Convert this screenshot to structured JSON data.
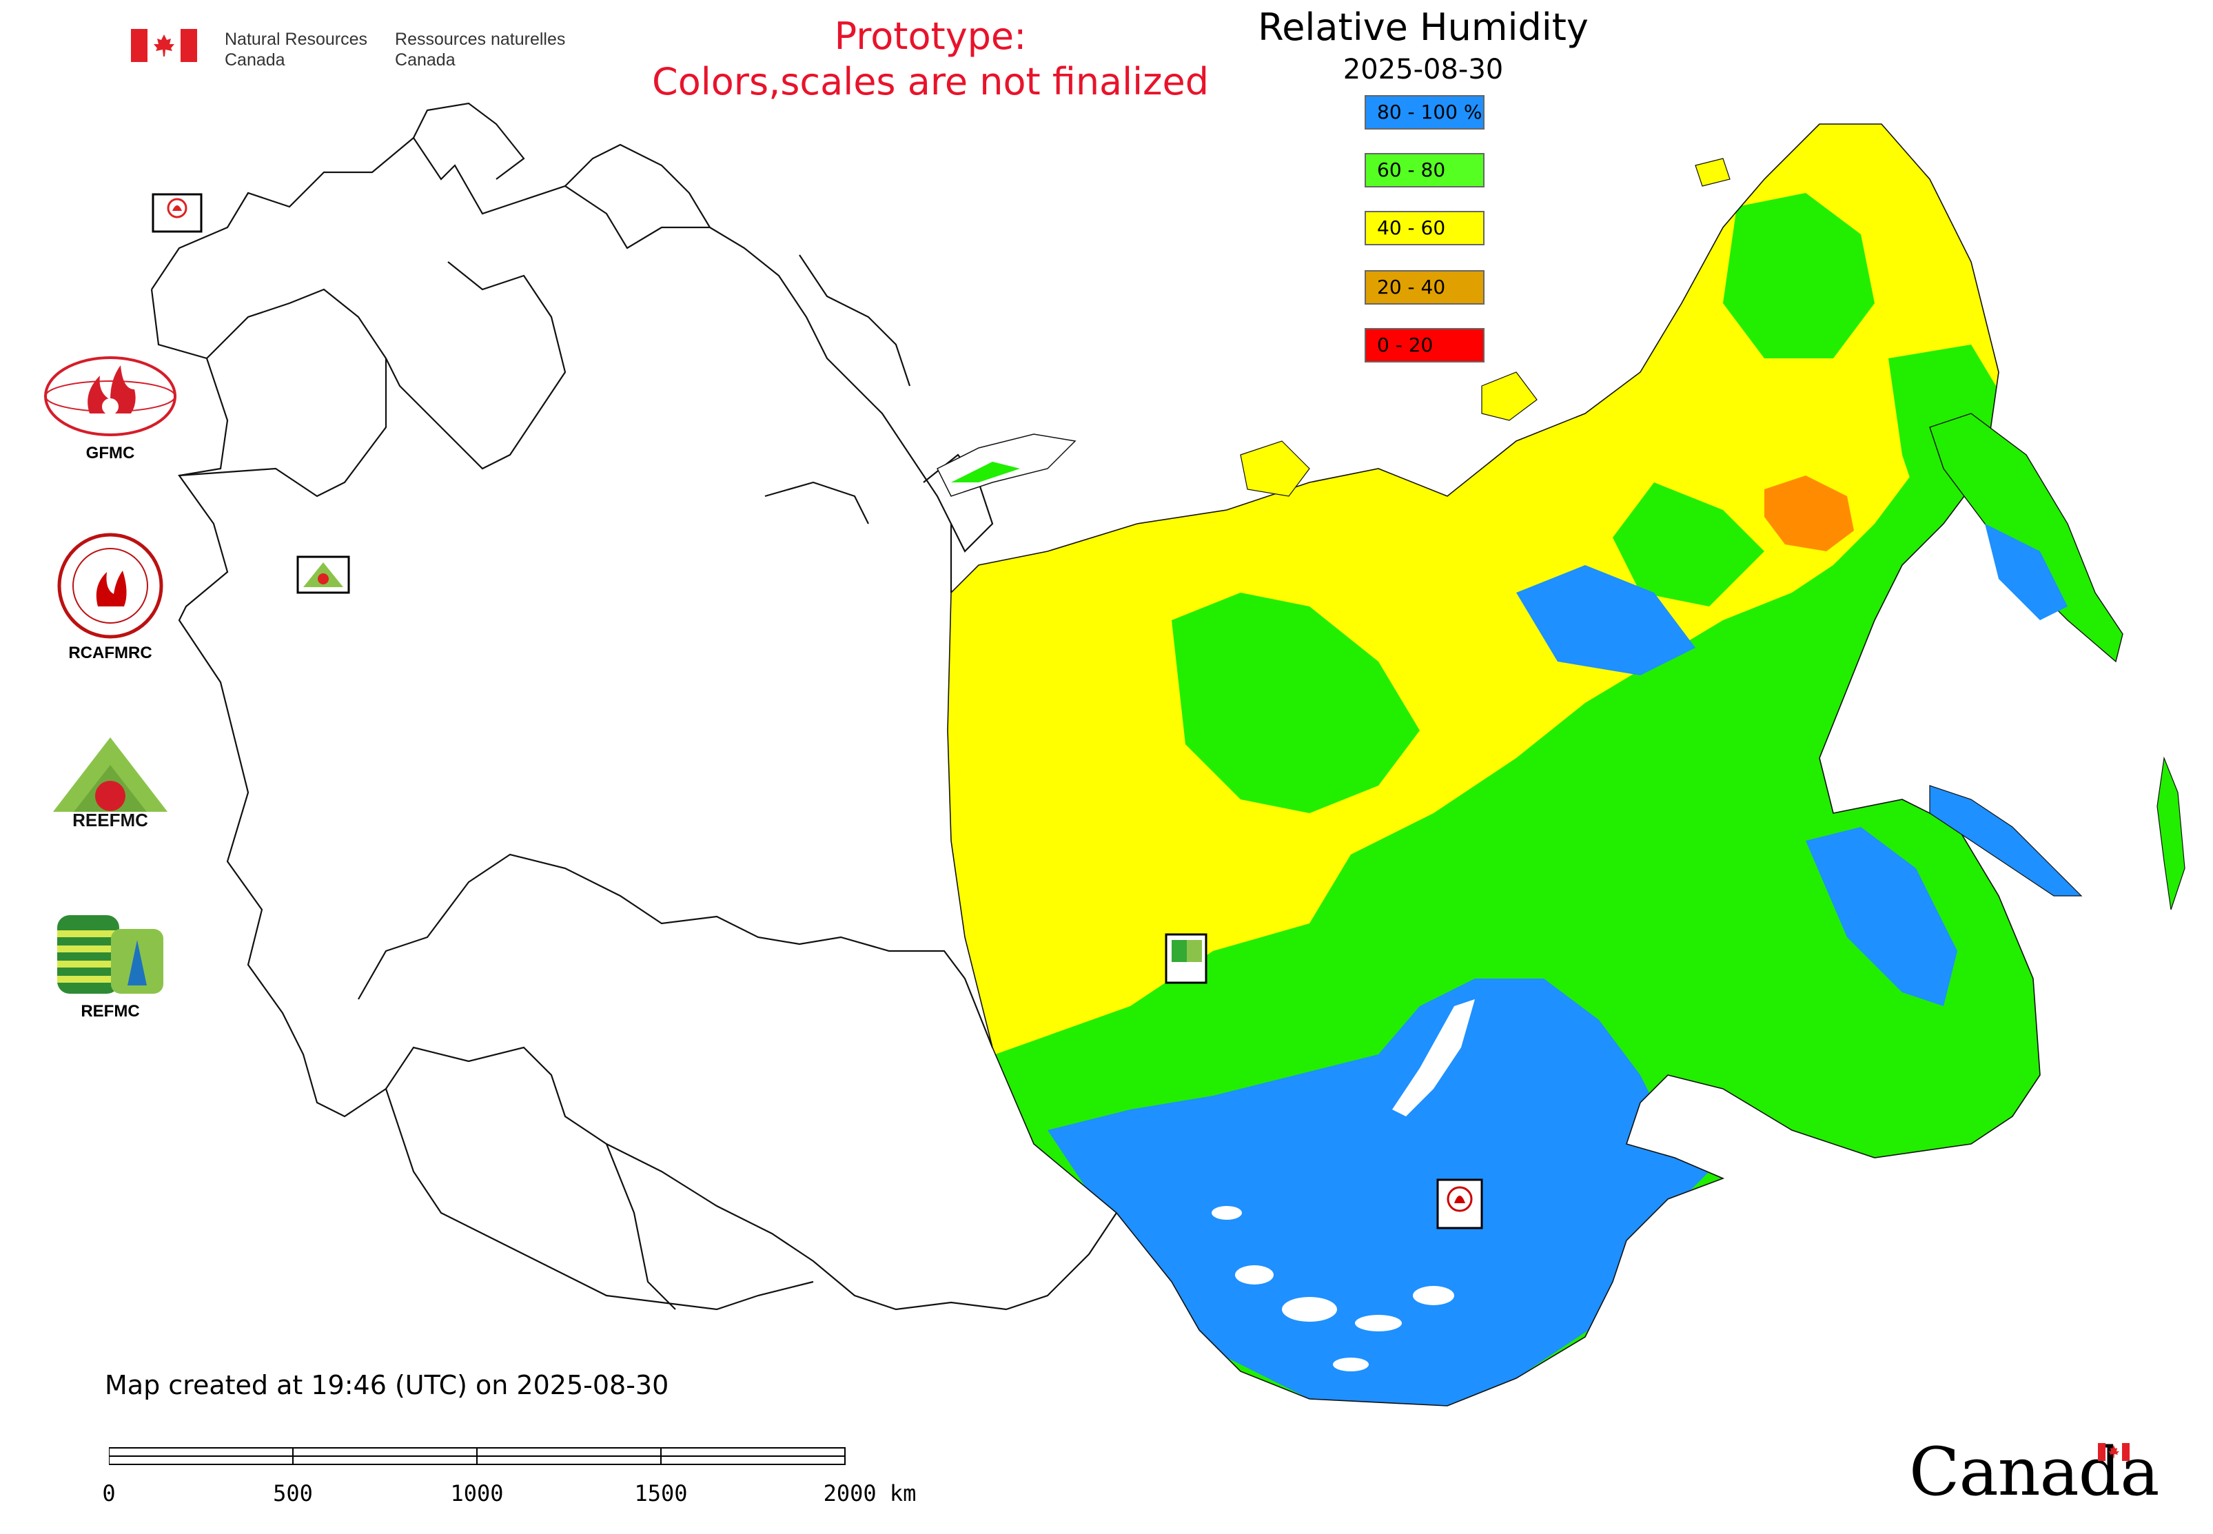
{
  "header": {
    "department_en_line1": "Natural Resources",
    "department_en_line2": "Canada",
    "department_fr_line1": "Ressources naturelles",
    "department_fr_line2": "Canada",
    "prototype_line1": "Prototype:",
    "prototype_line2": "Colors,scales are not finalized"
  },
  "legend": {
    "title": "Relative Humidity",
    "date": "2025-08-30",
    "items": [
      {
        "label": "80 - 100 %",
        "color": "#1e90ff"
      },
      {
        "label": "60 - 80",
        "color": "#55ff22"
      },
      {
        "label": "40 - 60",
        "color": "#ffff00"
      },
      {
        "label": "20 - 40",
        "color": "#e0a000"
      },
      {
        "label": "0 - 20",
        "color": "#ff0000"
      }
    ]
  },
  "map": {
    "region_colors": {
      "humidity_80_100": "#1e90ff",
      "humidity_60_80": "#22ee00",
      "humidity_40_60": "#ffff00",
      "humidity_20_40": "#ff8c00",
      "humidity_0_20": "#ff0000",
      "outline": "#000000"
    },
    "site_markers": [
      {
        "name": "gfmc-marker-icon",
        "label": "GFMC"
      },
      {
        "name": "reefmc-marker-icon",
        "label": "REEFMC"
      },
      {
        "name": "refmc-marker-icon",
        "label": "REFMC"
      },
      {
        "name": "rcafmrc-marker-icon",
        "label": "RCAFMRC"
      }
    ]
  },
  "partners": [
    {
      "label": "GFMC",
      "icon": "gfmc-logo-icon"
    },
    {
      "label": "RCAFMRC",
      "icon": "rcafmrc-logo-icon"
    },
    {
      "label": "",
      "icon": "reefmc-logo-icon",
      "logo_text": "REEFMC"
    },
    {
      "label": "REFMC",
      "icon": "refmc-logo-icon"
    }
  ],
  "footer": {
    "created": "Map created at 19:46 (UTC) on 2025-08-30",
    "scale_ticks": [
      "0",
      "500",
      "1000",
      "1500",
      "2000 km"
    ],
    "wordmark": "Canada"
  }
}
